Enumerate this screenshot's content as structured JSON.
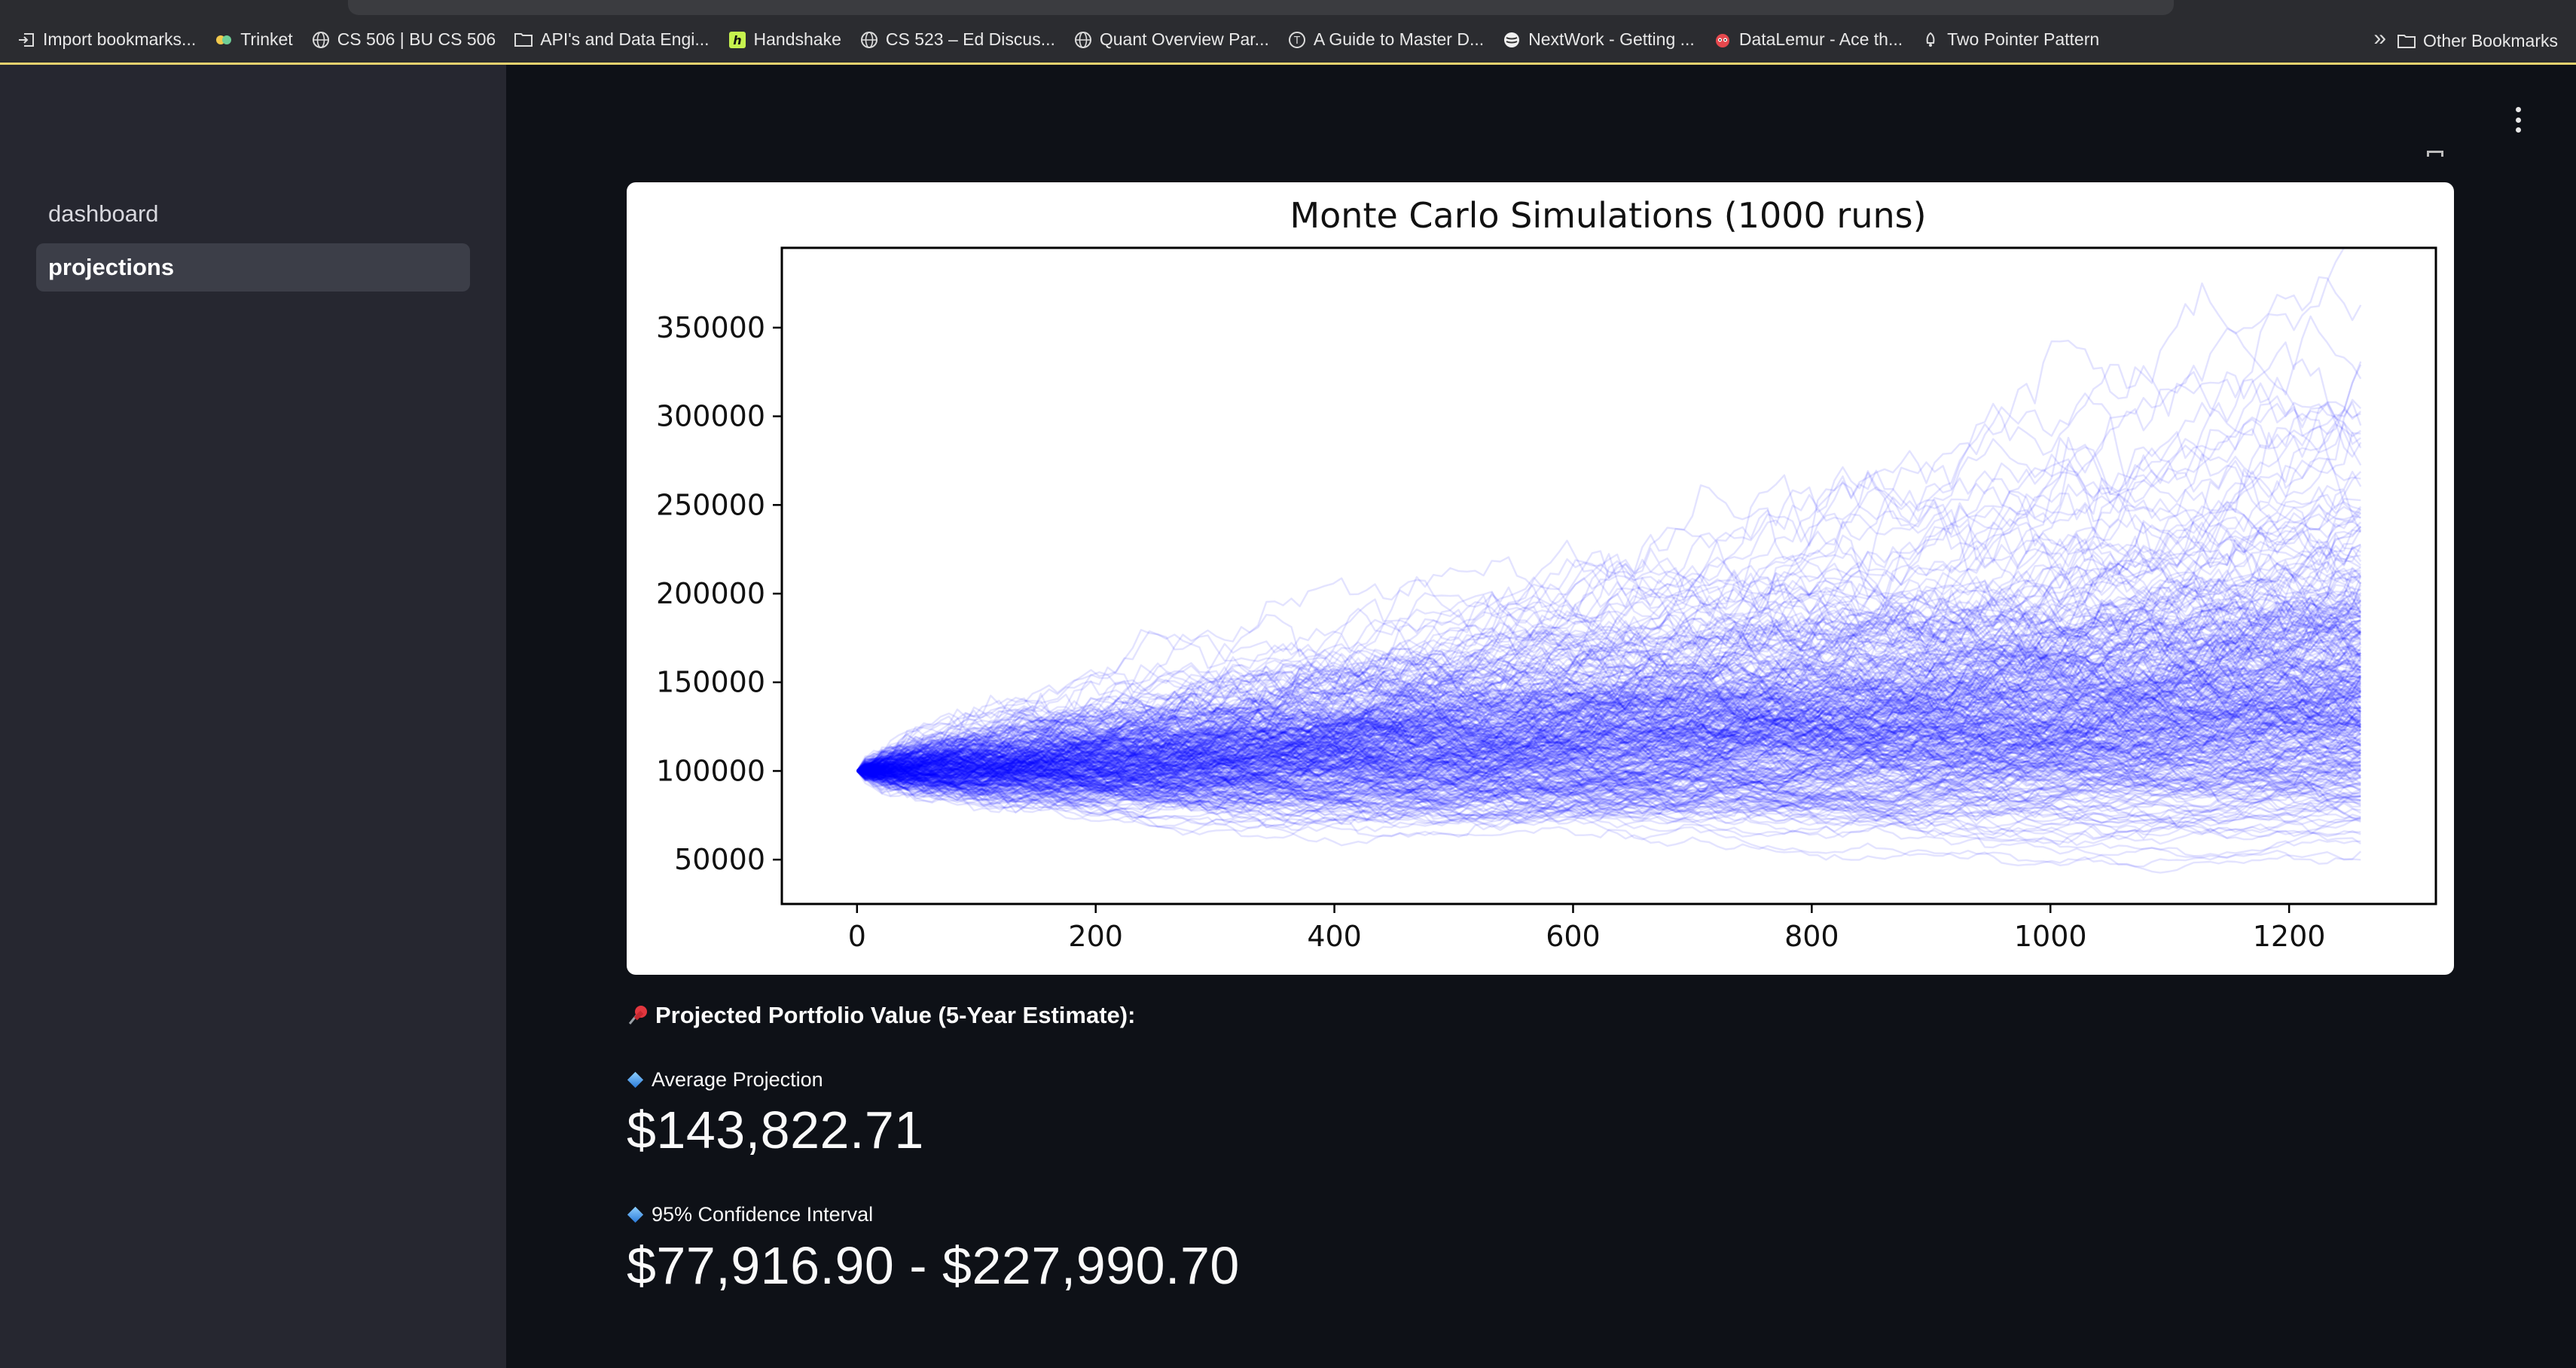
{
  "bookmarks": [
    {
      "label": "Import bookmarks...",
      "icon": "import-icon"
    },
    {
      "label": "Trinket",
      "icon": "trinket-icon"
    },
    {
      "label": "CS 506 | BU CS 506",
      "icon": "globe-icon"
    },
    {
      "label": "API's and Data Engi...",
      "icon": "folder-icon"
    },
    {
      "label": "Handshake",
      "icon": "handshake-icon"
    },
    {
      "label": "CS 523 – Ed Discus...",
      "icon": "globe-icon"
    },
    {
      "label": "Quant Overview Par...",
      "icon": "globe-icon"
    },
    {
      "label": "A Guide to Master D...",
      "icon": "t-badge-icon"
    },
    {
      "label": "NextWork - Getting ...",
      "icon": "nextwork-icon"
    },
    {
      "label": "DataLemur - Ace th...",
      "icon": "datalemur-icon"
    },
    {
      "label": "Two Pointer Pattern",
      "icon": "bell-icon"
    }
  ],
  "bookmarks_more_icon": "double-chevron-right-icon",
  "other_bookmarks": "Other Bookmarks",
  "sidebar": {
    "items": [
      {
        "label": "dashboard",
        "active": false
      },
      {
        "label": "projections",
        "active": true
      }
    ]
  },
  "main": {
    "menu_icon": "kebab-menu-icon",
    "subheader": "Projected Portfolio Value (5-Year Estimate):",
    "subheader_icon": "pushpin-icon",
    "metrics": [
      {
        "label": "Average Projection",
        "value": "$143,822.71",
        "icon": "blue-diamond-icon"
      },
      {
        "label": "95% Confidence Interval",
        "value": "$77,916.90 - $227,990.70",
        "icon": "blue-diamond-icon"
      }
    ]
  },
  "colors": {
    "app_bg": "#0e1117",
    "sidebar_bg": "#262730",
    "active_nav_bg": "#3c3e48",
    "series_color": "#0000ff"
  },
  "chart_data": {
    "type": "line",
    "title": "Monte Carlo Simulations (1000 runs)",
    "xlabel": "",
    "ylabel": "",
    "runs": 1000,
    "steps": 1260,
    "start_value": 100000,
    "xlim": [
      -63,
      1323
    ],
    "ylim": [
      25000,
      395000
    ],
    "xticks": [
      0,
      200,
      400,
      600,
      800,
      1000,
      1200
    ],
    "yticks": [
      50000,
      100000,
      150000,
      200000,
      250000,
      300000,
      350000
    ],
    "grid": false,
    "legend": "none",
    "final_value_range": [
      45000,
      380000
    ],
    "band_upper": [
      {
        "x": 0,
        "y": 100000
      },
      {
        "x": 200,
        "y": 140000
      },
      {
        "x": 400,
        "y": 170000
      },
      {
        "x": 600,
        "y": 200000
      },
      {
        "x": 800,
        "y": 235000
      },
      {
        "x": 1000,
        "y": 265000
      },
      {
        "x": 1260,
        "y": 310000
      }
    ],
    "band_lower": [
      {
        "x": 0,
        "y": 100000
      },
      {
        "x": 200,
        "y": 78000
      },
      {
        "x": 400,
        "y": 72000
      },
      {
        "x": 600,
        "y": 70000
      },
      {
        "x": 800,
        "y": 67000
      },
      {
        "x": 1000,
        "y": 64000
      },
      {
        "x": 1260,
        "y": 62000
      }
    ]
  }
}
